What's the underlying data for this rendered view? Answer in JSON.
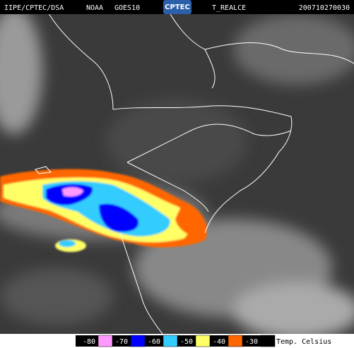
{
  "header": {
    "source": "IIPE/CPTEC/DSA",
    "agency": "NOAA",
    "satellite": "GOES10",
    "logo": "CPTEC",
    "product": "T_REALCE",
    "timestamp": "200710270030"
  },
  "legend": {
    "items": [
      {
        "value": -80,
        "color": "#ff99ff"
      },
      {
        "value": -70,
        "color": "#0000ff"
      },
      {
        "value": -60,
        "color": "#33ccff"
      },
      {
        "value": -50,
        "color": "#ffff66"
      },
      {
        "value": -40,
        "color": "#ff6600"
      },
      {
        "value": -30,
        "color": "#000000"
      }
    ],
    "unit": "Temp. Celsius"
  }
}
